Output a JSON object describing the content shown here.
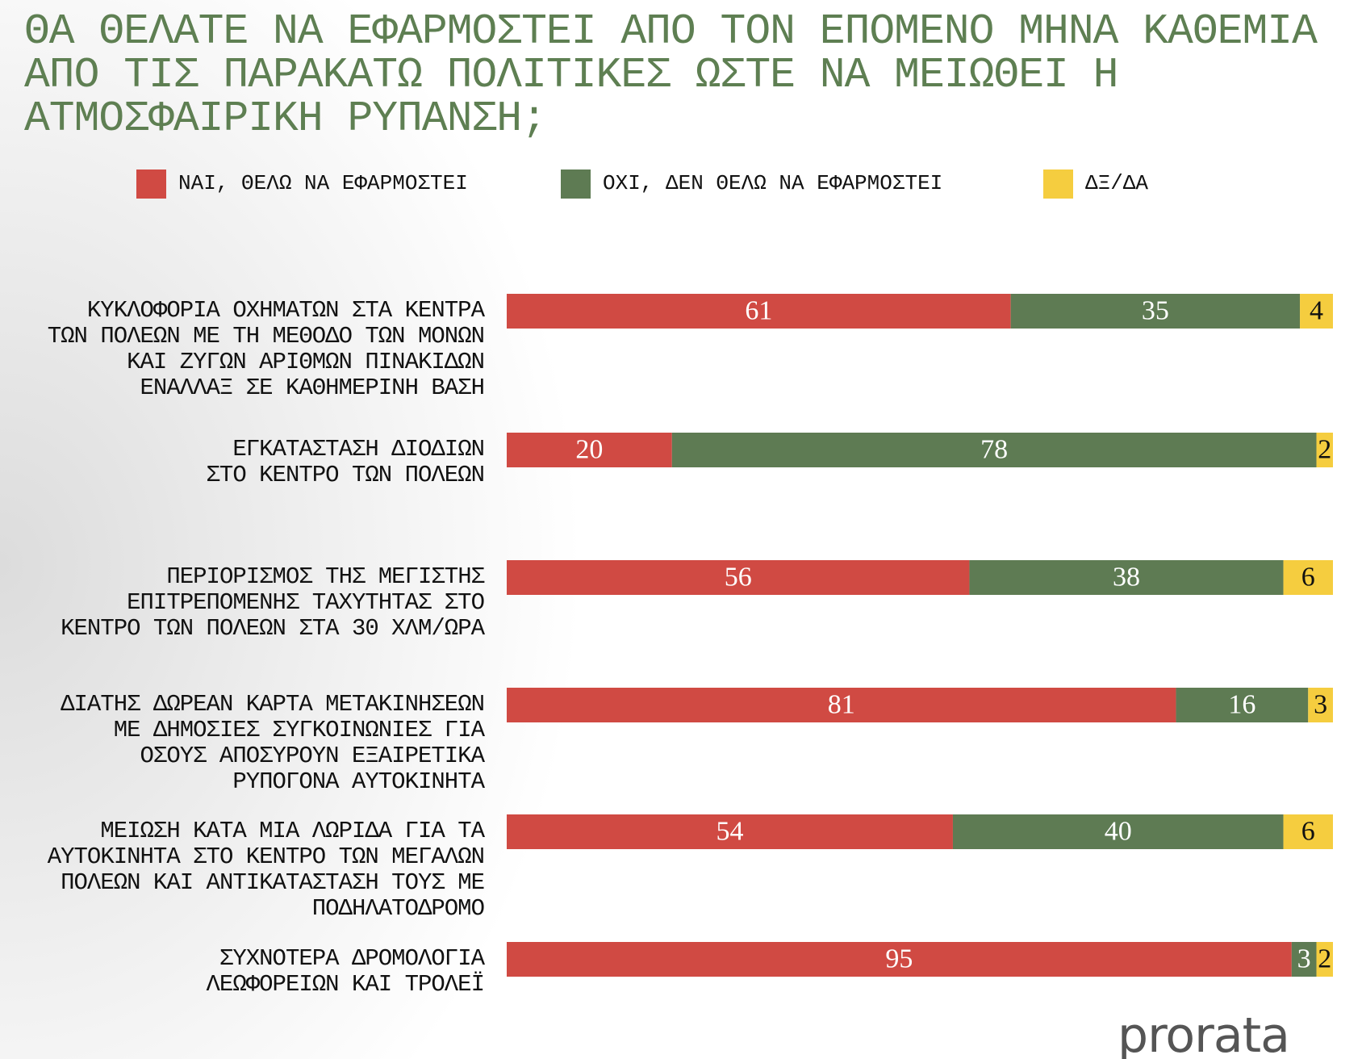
{
  "chart_data": {
    "type": "stacked-bar-horizontal",
    "title": "ΘΑ ΘΕΛΑΤΕ ΝΑ ΕΦΑΡΜΟΣΤΕΙ ΑΠΟ ΤΟΝ ΕΠΟΜΕΝΟ ΜΗΝΑ ΚΑΘΕΜΙΑ\nΑΠΟ ΤΙΣ ΠΑΡΑΚΑΤΩ ΠΟΛΙΤΙΚΕΣ ΩΣΤΕ ΝΑ ΜΕΙΩΘΕΙ Η\nΑΤΜΟΣΦΑΙΡΙΚΗ ΡΥΠΑΝΣΗ;",
    "categories": [
      "ΚΥΚΛΟΦΟΡΙΑ ΟΧΗΜΑΤΩΝ ΣΤΑ ΚΕΝΤΡΑ\nΤΩΝ ΠΟΛΕΩΝ ΜΕ ΤΗ ΜΕΘΟΔΟ ΤΩΝ ΜΟΝΩΝ\nΚΑΙ ΖΥΓΩΝ ΑΡΙΘΜΩΝ ΠΙΝΑΚΙΔΩΝ\nΕΝΑΛΛΑΞ ΣΕ ΚΑΘΗΜΕΡΙΝΗ ΒΑΣΗ",
      "ΕΓΚΑΤΑΣΤΑΣΗ ΔΙΟΔΙΩΝ\nΣΤΟ ΚΕΝΤΡΟ ΤΩΝ ΠΟΛΕΩΝ",
      "ΠΕΡΙΟΡΙΣΜΟΣ ΤΗΣ ΜΕΓΙΣΤΗΣ\nΕΠΙΤΡΕΠΟΜΕΝΗΣ ΤΑΧΥΤΗΤΑΣ ΣΤΟ\nΚΕΝΤΡΟ ΤΩΝ ΠΟΛΕΩΝ ΣΤΑ 30 ΧΛΜ/ΩΡΑ",
      "ΔΙΑΤΗΣ ΔΩΡΕΑΝ ΚΑΡΤΑ ΜΕΤΑΚΙΝΗΣΕΩΝ\nΜΕ ΔΗΜΟΣΙΕΣ ΣΥΓΚΟΙΝΩΝΙΕΣ ΓΙΑ\nΟΣΟΥΣ ΑΠΟΣΥΡΟΥΝ ΕΞΑΙΡΕΤΙΚΑ\nΡΥΠΟΓΟΝΑ ΑΥΤΟΚΙΝΗΤΑ",
      "ΜΕΙΩΣΗ ΚΑΤΑ ΜΙΑ ΛΩΡΙΔΑ ΓΙΑ ΤΑ\nΑΥΤΟΚΙΝΗΤΑ ΣΤΟ ΚΕΝΤΡΟ ΤΩΝ ΜΕΓΑΛΩΝ\nΠΟΛΕΩΝ ΚΑΙ ΑΝΤΙΚΑΤΑΣΤΑΣΗ ΤΟΥΣ ΜΕ\nΠΟΔΗΛΑΤΟΔΡΟΜΟ",
      "ΣΥΧΝΟΤΕΡΑ ΔΡΟΜΟΛΟΓΙΑ\nΛΕΩΦΟΡΕΙΩΝ ΚΑΙ ΤΡΟΛΕΪ"
    ],
    "series": [
      {
        "name": "ΝΑΙ, ΘΕΛΩ ΝΑ ΕΦΑΡΜΟΣΤΕΙ",
        "color": "#d04a43",
        "label_color": "#ffffff",
        "values": [
          61,
          20,
          56,
          81,
          54,
          95
        ]
      },
      {
        "name": "ΟΧΙ, ΔΕΝ ΘΕΛΩ ΝΑ ΕΦΑΡΜΟΣΤΕΙ",
        "color": "#5e7b53",
        "label_color": "#ffffff",
        "values": [
          35,
          78,
          38,
          16,
          40,
          3
        ]
      },
      {
        "name": "ΔΞ/ΔΑ",
        "color": "#f5cd3f",
        "label_color": "#111111",
        "values": [
          4,
          2,
          6,
          3,
          6,
          2
        ]
      }
    ],
    "xlim": [
      0,
      100
    ],
    "logo": "prorata"
  }
}
